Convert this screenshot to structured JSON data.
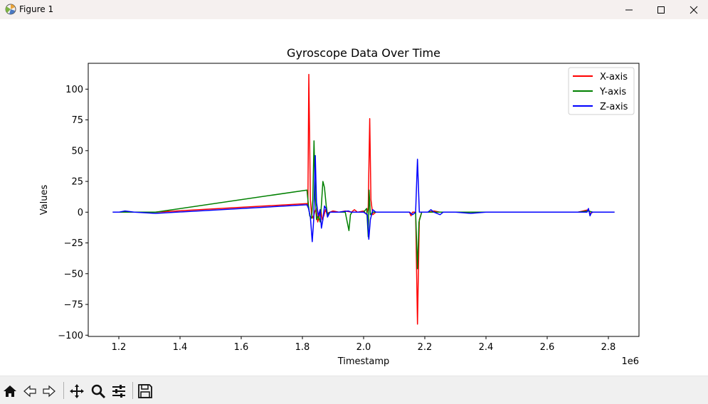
{
  "window": {
    "title": "Figure 1",
    "minimize_icon": "minimize-icon",
    "maximize_icon": "maximize-icon",
    "close_icon": "close-icon"
  },
  "toolbar": {
    "buttons": [
      {
        "name": "home-button",
        "icon": "home-icon"
      },
      {
        "name": "back-button",
        "icon": "back-arrow-icon"
      },
      {
        "name": "forward-button",
        "icon": "forward-arrow-icon"
      },
      {
        "name": "pan-button",
        "icon": "move-icon"
      },
      {
        "name": "zoom-button",
        "icon": "magnifier-icon"
      },
      {
        "name": "configure-subplots-button",
        "icon": "sliders-icon"
      },
      {
        "name": "save-button",
        "icon": "floppy-disk-icon"
      }
    ]
  },
  "chart_data": {
    "type": "line",
    "title": "Gyroscope Data Over Time",
    "xlabel": "Timestamp",
    "ylabel": "Values",
    "x_offset_label": "1e6",
    "xlim": [
      1.1,
      2.9
    ],
    "ylim": [
      -101,
      121
    ],
    "x_ticks": [
      1.2,
      1.4,
      1.6,
      1.8,
      2.0,
      2.2,
      2.4,
      2.6,
      2.8
    ],
    "y_ticks": [
      -100,
      -75,
      -50,
      -25,
      0,
      25,
      50,
      75,
      100
    ],
    "grid": false,
    "legend_position": "top-right",
    "series": [
      {
        "name": "X-axis",
        "color": "#ff0000",
        "points": [
          [
            1.18,
            0
          ],
          [
            1.2,
            0
          ],
          [
            1.25,
            0
          ],
          [
            1.32,
            0
          ],
          [
            1.815,
            7
          ],
          [
            1.818,
            5
          ],
          [
            1.821,
            112
          ],
          [
            1.826,
            10
          ],
          [
            1.83,
            -2
          ],
          [
            1.835,
            -5
          ],
          [
            1.84,
            0
          ],
          [
            1.845,
            3
          ],
          [
            1.85,
            -8
          ],
          [
            1.855,
            -3
          ],
          [
            1.86,
            2
          ],
          [
            1.865,
            -6
          ],
          [
            1.87,
            -3
          ],
          [
            1.875,
            2
          ],
          [
            1.88,
            -1
          ],
          [
            1.89,
            0
          ],
          [
            1.9,
            1
          ],
          [
            1.92,
            0
          ],
          [
            1.94,
            1
          ],
          [
            1.96,
            0
          ],
          [
            1.97,
            2
          ],
          [
            1.98,
            0
          ],
          [
            2.0,
            1
          ],
          [
            2.01,
            -2
          ],
          [
            2.015,
            4
          ],
          [
            2.02,
            76
          ],
          [
            2.024,
            10
          ],
          [
            2.03,
            -2
          ],
          [
            2.04,
            0
          ],
          [
            2.08,
            0
          ],
          [
            2.12,
            0
          ],
          [
            2.15,
            0
          ],
          [
            2.155,
            -3
          ],
          [
            2.16,
            0
          ],
          [
            2.17,
            0
          ],
          [
            2.176,
            -91
          ],
          [
            2.182,
            -6
          ],
          [
            2.19,
            0
          ],
          [
            2.21,
            0
          ],
          [
            2.23,
            1
          ],
          [
            2.25,
            0
          ],
          [
            2.3,
            0
          ],
          [
            2.4,
            0
          ],
          [
            2.5,
            0
          ],
          [
            2.6,
            0
          ],
          [
            2.7,
            0
          ],
          [
            2.735,
            2
          ],
          [
            2.74,
            -1
          ],
          [
            2.75,
            0
          ],
          [
            2.8,
            0
          ],
          [
            2.82,
            0
          ]
        ]
      },
      {
        "name": "Y-axis",
        "color": "#008000",
        "points": [
          [
            1.18,
            0
          ],
          [
            1.2,
            0
          ],
          [
            1.25,
            0
          ],
          [
            1.32,
            0
          ],
          [
            1.815,
            18
          ],
          [
            1.82,
            5
          ],
          [
            1.824,
            -3
          ],
          [
            1.83,
            -5
          ],
          [
            1.834,
            10
          ],
          [
            1.838,
            58
          ],
          [
            1.842,
            12
          ],
          [
            1.846,
            -6
          ],
          [
            1.852,
            -3
          ],
          [
            1.858,
            -8
          ],
          [
            1.862,
            6
          ],
          [
            1.867,
            25
          ],
          [
            1.872,
            20
          ],
          [
            1.878,
            5
          ],
          [
            1.882,
            -2
          ],
          [
            1.89,
            0
          ],
          [
            1.92,
            0
          ],
          [
            1.94,
            0
          ],
          [
            1.952,
            -15
          ],
          [
            1.957,
            -2
          ],
          [
            1.962,
            0
          ],
          [
            1.98,
            0
          ],
          [
            2.0,
            0
          ],
          [
            2.01,
            3
          ],
          [
            2.015,
            -20
          ],
          [
            2.018,
            18
          ],
          [
            2.022,
            -2
          ],
          [
            2.03,
            0
          ],
          [
            2.08,
            0
          ],
          [
            2.12,
            0
          ],
          [
            2.15,
            0
          ],
          [
            2.16,
            -2
          ],
          [
            2.17,
            0
          ],
          [
            2.176,
            -46
          ],
          [
            2.181,
            -8
          ],
          [
            2.19,
            0
          ],
          [
            2.22,
            0
          ],
          [
            2.3,
            0
          ],
          [
            2.4,
            0
          ],
          [
            2.5,
            0
          ],
          [
            2.6,
            0
          ],
          [
            2.7,
            0
          ],
          [
            2.735,
            1
          ],
          [
            2.75,
            0
          ],
          [
            2.8,
            0
          ],
          [
            2.82,
            0
          ]
        ]
      },
      {
        "name": "Z-axis",
        "color": "#0000ff",
        "points": [
          [
            1.18,
            0
          ],
          [
            1.2,
            0
          ],
          [
            1.22,
            1
          ],
          [
            1.25,
            0
          ],
          [
            1.32,
            -1
          ],
          [
            1.815,
            6
          ],
          [
            1.82,
            3
          ],
          [
            1.826,
            -4
          ],
          [
            1.832,
            -24
          ],
          [
            1.837,
            -6
          ],
          [
            1.842,
            46
          ],
          [
            1.846,
            8
          ],
          [
            1.852,
            -3
          ],
          [
            1.858,
            2
          ],
          [
            1.862,
            -13
          ],
          [
            1.867,
            -6
          ],
          [
            1.872,
            5
          ],
          [
            1.877,
            3
          ],
          [
            1.882,
            -4
          ],
          [
            1.89,
            0
          ],
          [
            1.92,
            0
          ],
          [
            1.95,
            1
          ],
          [
            1.96,
            0
          ],
          [
            1.98,
            0
          ],
          [
            2.0,
            0
          ],
          [
            2.012,
            -2
          ],
          [
            2.017,
            -22
          ],
          [
            2.022,
            -6
          ],
          [
            2.03,
            2
          ],
          [
            2.04,
            0
          ],
          [
            2.08,
            0
          ],
          [
            2.12,
            0
          ],
          [
            2.15,
            0
          ],
          [
            2.155,
            -1
          ],
          [
            2.16,
            -2
          ],
          [
            2.17,
            0
          ],
          [
            2.176,
            43
          ],
          [
            2.182,
            0
          ],
          [
            2.19,
            0
          ],
          [
            2.21,
            0
          ],
          [
            2.22,
            2
          ],
          [
            2.23,
            0
          ],
          [
            2.25,
            -2
          ],
          [
            2.26,
            0
          ],
          [
            2.3,
            0
          ],
          [
            2.35,
            -1
          ],
          [
            2.4,
            0
          ],
          [
            2.5,
            0
          ],
          [
            2.6,
            0
          ],
          [
            2.7,
            0
          ],
          [
            2.73,
            0
          ],
          [
            2.735,
            3
          ],
          [
            2.74,
            -3
          ],
          [
            2.745,
            0
          ],
          [
            2.75,
            0
          ],
          [
            2.8,
            0
          ],
          [
            2.82,
            0
          ]
        ]
      }
    ]
  }
}
